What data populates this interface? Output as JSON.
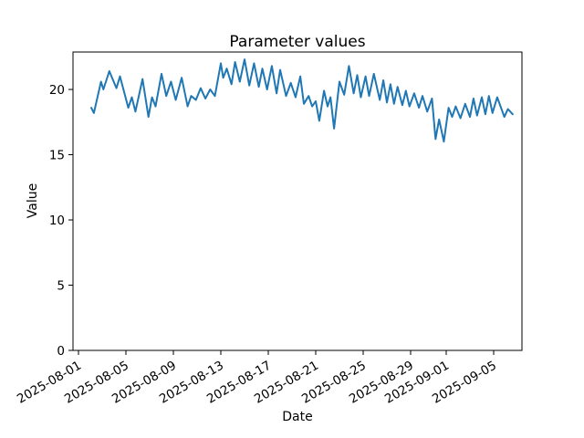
{
  "figure": {
    "title": "Parameter values",
    "xlabel": "Date",
    "ylabel": "Value",
    "background_color": "#ffffff",
    "axis_color": "#000000",
    "line_color": "#1f77b4"
  },
  "chart_data": {
    "type": "line",
    "title": "Parameter values",
    "xlabel": "Date",
    "ylabel": "Value",
    "grid": false,
    "legend_position": "none",
    "line_color": "#1f77b4",
    "x_unit": "days since 2025-08-01",
    "xlim_days": [
      -0.4615,
      37.3846
    ],
    "ylim": [
      0,
      22.87
    ],
    "xticks": {
      "day_offsets": [
        0,
        4,
        8,
        12,
        16,
        20,
        24,
        28,
        31,
        35
      ],
      "labels": [
        "2025-08-01",
        "2025-08-05",
        "2025-08-09",
        "2025-08-13",
        "2025-08-17",
        "2025-08-21",
        "2025-08-25",
        "2025-08-29",
        "2025-09-01",
        "2025-09-05"
      ],
      "rotation_deg": 30
    },
    "yticks": [
      0,
      5,
      10,
      15,
      20
    ],
    "x": [
      1.08,
      1.3,
      1.9,
      2.1,
      2.6,
      3.2,
      3.5,
      4.2,
      4.5,
      4.8,
      5.4,
      5.9,
      6.2,
      6.5,
      7.0,
      7.4,
      7.8,
      8.2,
      8.7,
      9.2,
      9.5,
      9.9,
      10.3,
      10.7,
      11.1,
      11.5,
      12.0,
      12.2,
      12.5,
      12.9,
      13.2,
      13.6,
      14.0,
      14.4,
      14.8,
      15.2,
      15.5,
      15.9,
      16.3,
      16.7,
      17.0,
      17.5,
      17.9,
      18.3,
      18.7,
      19.0,
      19.4,
      19.7,
      20.0,
      20.3,
      20.7,
      21.0,
      21.25,
      21.55,
      22.0,
      22.4,
      22.8,
      23.2,
      23.5,
      23.8,
      24.2,
      24.5,
      24.9,
      25.4,
      25.7,
      26.0,
      26.3,
      26.6,
      26.9,
      27.3,
      27.6,
      27.9,
      28.3,
      28.7,
      29.0,
      29.4,
      29.8,
      30.1,
      30.4,
      30.8,
      31.2,
      31.5,
      31.8,
      32.2,
      32.6,
      33.0,
      33.3,
      33.6,
      34.0,
      34.3,
      34.6,
      34.9,
      35.3,
      35.9,
      36.2,
      36.6
    ],
    "y": [
      18.6,
      18.2,
      20.6,
      20.0,
      21.4,
      20.1,
      21.0,
      18.6,
      19.4,
      18.3,
      20.8,
      17.9,
      19.4,
      18.7,
      21.2,
      19.5,
      20.6,
      19.2,
      20.9,
      18.7,
      19.5,
      19.2,
      20.1,
      19.3,
      20.0,
      19.5,
      22.0,
      20.9,
      21.6,
      20.4,
      22.1,
      20.6,
      22.3,
      20.3,
      22.0,
      20.2,
      21.6,
      20.0,
      21.8,
      19.7,
      21.5,
      19.5,
      20.5,
      19.4,
      21.0,
      18.9,
      19.5,
      18.7,
      19.1,
      17.6,
      19.9,
      18.7,
      19.4,
      17.0,
      20.6,
      19.6,
      21.8,
      19.7,
      21.1,
      19.4,
      21.0,
      19.5,
      21.2,
      19.2,
      20.7,
      19.0,
      20.4,
      18.9,
      20.2,
      18.8,
      19.9,
      18.7,
      19.7,
      18.6,
      19.5,
      18.3,
      19.3,
      16.2,
      17.7,
      16.0,
      18.6,
      17.9,
      18.7,
      17.8,
      18.9,
      17.9,
      19.3,
      18.0,
      19.4,
      18.1,
      19.5,
      18.2,
      19.4,
      17.9,
      18.5,
      18.1
    ]
  }
}
